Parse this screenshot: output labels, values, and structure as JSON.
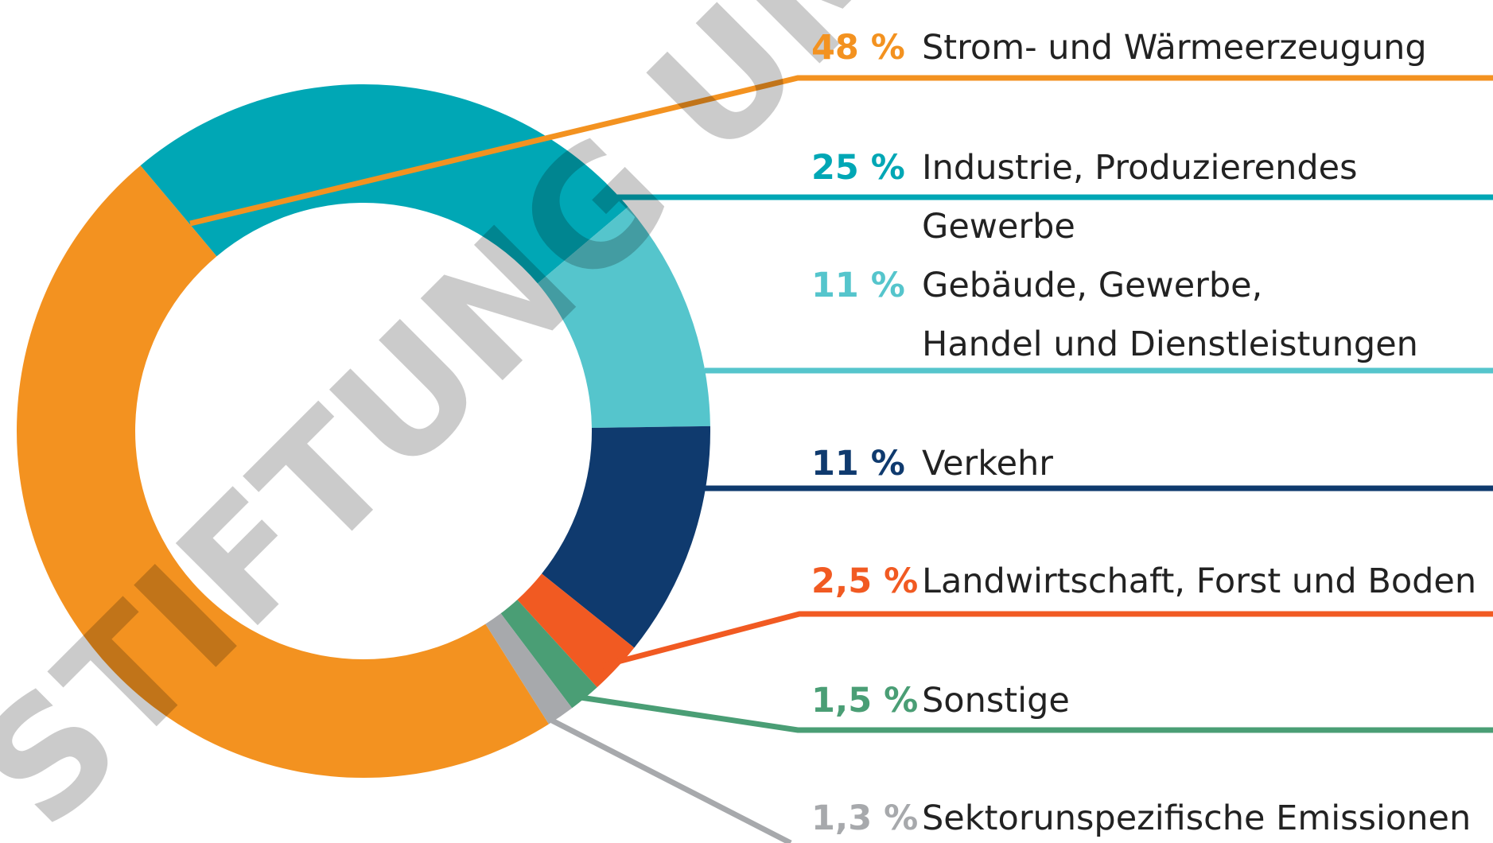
{
  "chart_data": {
    "type": "donut",
    "categories": [
      "Strom- und Wärmeerzeugung",
      "Industrie, Produzierendes Gewerbe",
      "Gebäude, Gewerbe,\nHandel und Dienstleistungen",
      "Verkehr",
      "Landwirtschaft, Forst und Boden",
      "Sonstige",
      "Sektorunspezifische Emissionen"
    ],
    "values": [
      48,
      25,
      11,
      11,
      2.5,
      1.5,
      1.3
    ],
    "value_labels": [
      "48 %",
      "25 %",
      "11 %",
      "11 %",
      "2,5 %",
      "1,5 %",
      "1,3 %"
    ],
    "colors": [
      "#f39220",
      "#00a7b5",
      "#55c5cc",
      "#0f3a6e",
      "#f15a22",
      "#4a9e75",
      "#a7a9ac"
    ],
    "watermark": "STIFTUNG UMWE"
  }
}
